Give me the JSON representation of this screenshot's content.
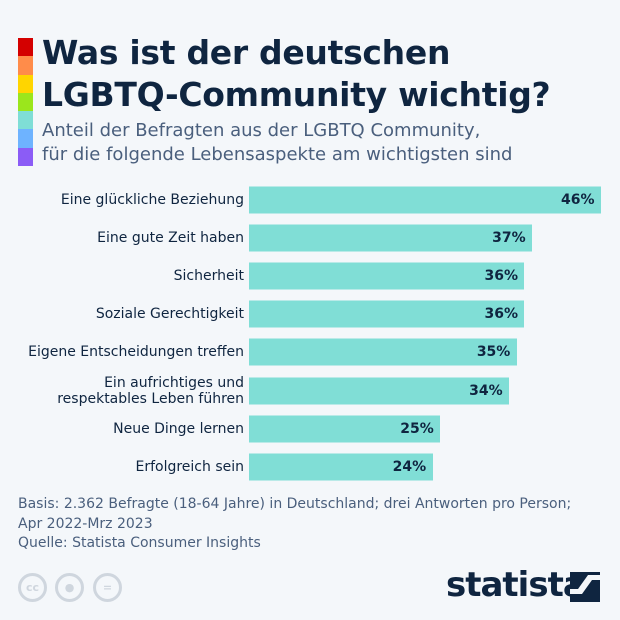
{
  "title": "Was ist der deutschen LGBTQ-Community wichtig?",
  "title_lines": [
    "Was ist der deutschen",
    "LGBTQ-Community wichtig?"
  ],
  "subtitle_lines": [
    "Anteil der Befragten aus der LGBTQ Community,",
    "für die folgende Lebensaspekte am wichtigsten sind"
  ],
  "rainbow": [
    "#d40000",
    "#ff8c4a",
    "#ffd500",
    "#9be61c",
    "#7fded6",
    "#6eb3ff",
    "#8b5cf6"
  ],
  "chart_data": {
    "type": "bar",
    "orientation": "horizontal",
    "categories": [
      "Eine glückliche Beziehung",
      "Eine gute Zeit haben",
      "Sicherheit",
      "Soziale Gerechtigkeit",
      "Eigene Entscheidungen treffen",
      "Ein aufrichtiges und respektables Leben führen",
      "Neue Dinge lernen",
      "Erfolgreich sein"
    ],
    "category_lines": [
      [
        "Eine glückliche Beziehung"
      ],
      [
        "Eine gute Zeit haben"
      ],
      [
        "Sicherheit"
      ],
      [
        "Soziale Gerechtigkeit"
      ],
      [
        "Eigene Entscheidungen treffen"
      ],
      [
        "Ein aufrichtiges und",
        "respektables Leben führen"
      ],
      [
        "Neue Dinge lernen"
      ],
      [
        "Erfolgreich sein"
      ]
    ],
    "values": [
      46,
      37,
      36,
      36,
      35,
      34,
      25,
      24
    ],
    "value_labels": [
      "46%",
      "37%",
      "36%",
      "36%",
      "35%",
      "34%",
      "25%",
      "24%"
    ],
    "unit": "%",
    "bar_color": "#80ded6",
    "grid": false
  },
  "notes_lines": [
    "Basis: 2.362 Befragte (18-64 Jahre) in Deutschland; drei Antworten pro Person;",
    "Apr 2022-Mrz 2023"
  ],
  "source": "Quelle: Statista Consumer Insights",
  "license_icons": [
    "cc-icon",
    "by-icon",
    "nd-icon"
  ],
  "logo": "statista"
}
